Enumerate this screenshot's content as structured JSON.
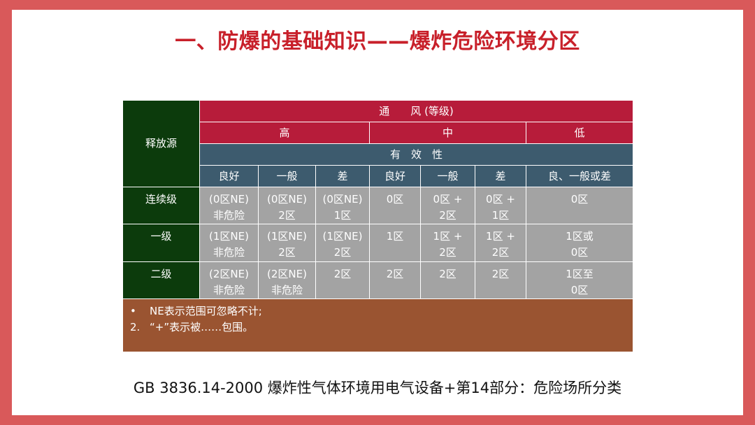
{
  "title": "一、防爆的基础知识——爆炸危险环境分区",
  "table": {
    "release_source_header": "释放源",
    "ventilation_header": "通　　风 (等级)",
    "levels": [
      "高",
      "中",
      "低"
    ],
    "effectiveness_header": "有　效　性",
    "effectiveness": [
      "良好",
      "一般",
      "差",
      "良好",
      "一般",
      "差",
      "良、一般或差"
    ],
    "rows": [
      {
        "label": "连续级",
        "cells": [
          [
            "(0区NE)",
            "非危险"
          ],
          [
            "(0区NE)",
            "2区"
          ],
          [
            "(0区NE)",
            "1区"
          ],
          [
            "0区"
          ],
          [
            "0区 +",
            "2区"
          ],
          [
            "0区 +",
            "1区"
          ],
          [
            "0区"
          ]
        ]
      },
      {
        "label": "一级",
        "cells": [
          [
            "(1区NE)",
            "非危险"
          ],
          [
            "(1区NE)",
            "2区"
          ],
          [
            "(1区NE)",
            "2区"
          ],
          [
            "1区"
          ],
          [
            "1区 +",
            "2区"
          ],
          [
            "1区 +",
            "2区"
          ],
          [
            "1区或",
            "0区"
          ]
        ]
      },
      {
        "label": "二级",
        "cells": [
          [
            "(2区NE)",
            "非危险"
          ],
          [
            "(2区NE)",
            "非危险"
          ],
          [
            "2区"
          ],
          [
            "2区"
          ],
          [
            "2区"
          ],
          [
            "2区"
          ],
          [
            "1区至",
            "0区"
          ]
        ]
      }
    ],
    "notes": [
      {
        "marker": "•",
        "text": "NE表示范围可忽略不计;"
      },
      {
        "marker": "2.",
        "text": "“+”表示被……包围。"
      }
    ]
  },
  "caption": "GB 3836.14-2000 爆炸性气体环境用电气设备+第14部分：危险场所分类",
  "colors": {
    "border": "#d9595a",
    "title": "#c8202a",
    "source_col": "#0c3b0c",
    "header_crimson": "#b71c3a",
    "header_teal": "#3d5b6e",
    "body_grey": "#a3a3a3",
    "notes_brown": "#9a5431"
  }
}
